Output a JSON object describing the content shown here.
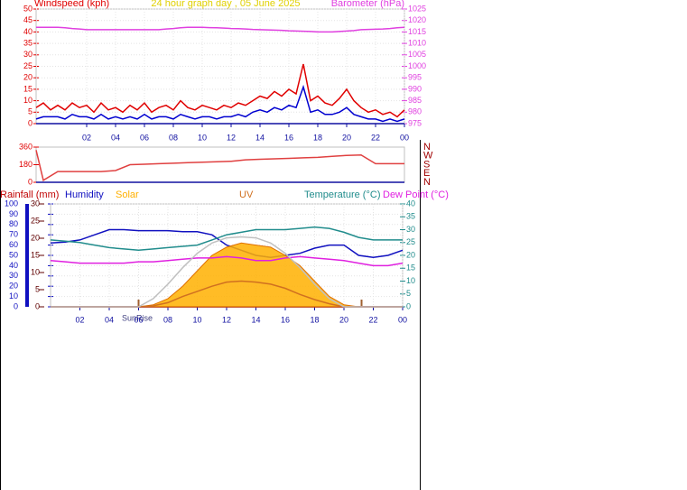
{
  "chart_data": [
    {
      "type": "line",
      "title": "24 hour graph day , 05 June 2025",
      "y_label": "Windspeed (kph)",
      "y2_label": "Barometer (hPa)",
      "x": [
        -1.5,
        -1,
        -0.5,
        0,
        0.5,
        1,
        1.5,
        2,
        2.5,
        3,
        3.5,
        4,
        4.5,
        5,
        5.5,
        6,
        6.5,
        7,
        7.5,
        8,
        8.5,
        9,
        9.5,
        10,
        10.5,
        11,
        11.5,
        12,
        12.5,
        13,
        13.5,
        14,
        14.5,
        15,
        15.5,
        16,
        16.5,
        17,
        17.5,
        18,
        18.5,
        19,
        19.5,
        20,
        20.5,
        21,
        21.5,
        22,
        22.5,
        23,
        23.5,
        24
      ],
      "xlim": [
        -1.5,
        24
      ],
      "xticks": [
        {
          "value": 2,
          "label": "02"
        },
        {
          "value": 4,
          "label": "04"
        },
        {
          "value": 6,
          "label": "06"
        },
        {
          "value": 8,
          "label": "08"
        },
        10,
        12,
        14,
        16,
        18,
        20,
        22,
        {
          "value": 24,
          "label": "00"
        }
      ],
      "ylim": [
        0,
        50
      ],
      "yticks": [
        0,
        5,
        10,
        15,
        20,
        25,
        30,
        35,
        40,
        45,
        50
      ],
      "y2lim": [
        975,
        1025
      ],
      "y2ticks": [
        975,
        980,
        985,
        990,
        995,
        1000,
        1005,
        1010,
        1015,
        1020,
        1025
      ],
      "grid": true,
      "series": [
        {
          "color": "#e00000",
          "values": [
            7,
            9,
            6,
            8,
            6,
            9,
            7,
            8,
            5,
            9,
            6,
            7,
            5,
            8,
            6,
            9,
            5,
            7,
            8,
            6,
            10,
            7,
            6,
            8,
            7,
            6,
            8,
            7,
            9,
            8,
            10,
            12,
            11,
            14,
            12,
            15,
            13,
            26,
            10,
            12,
            9,
            8,
            11,
            15,
            10,
            7,
            5,
            6,
            4,
            5,
            3,
            6
          ]
        },
        {
          "color": "#0000d0",
          "values": [
            2,
            3,
            3,
            3,
            2,
            4,
            3,
            3,
            2,
            4,
            2,
            3,
            2,
            3,
            2,
            4,
            2,
            3,
            3,
            2,
            4,
            3,
            2,
            3,
            3,
            2,
            3,
            3,
            4,
            3,
            5,
            6,
            5,
            7,
            6,
            8,
            7,
            16,
            5,
            6,
            4,
            4,
            5,
            7,
            4,
            3,
            2,
            2,
            1,
            2,
            1,
            2
          ]
        },
        {
          "color": "#e040e0",
          "axis": "y2",
          "values": [
            1017,
            1017,
            1017,
            1017,
            1016.8,
            1016.5,
            1016.3,
            1016,
            1016,
            1016,
            1016,
            1016,
            1016,
            1016,
            1016,
            1016,
            1016,
            1016,
            1016.3,
            1016.5,
            1016.8,
            1017,
            1017,
            1017,
            1016.9,
            1016.8,
            1016.7,
            1016.5,
            1016.4,
            1016.3,
            1016.1,
            1016,
            1015.9,
            1015.8,
            1015.7,
            1015.5,
            1015.4,
            1015.3,
            1015.2,
            1015,
            1015,
            1015,
            1015.2,
            1015.4,
            1015.6,
            1016,
            1016.1,
            1016.2,
            1016.3,
            1016.5,
            1016.8,
            1017
          ]
        }
      ]
    },
    {
      "type": "line",
      "compass": [
        "N",
        "W",
        "S",
        "E",
        "N"
      ],
      "x": [
        -1.5,
        -1,
        0,
        1,
        2,
        3,
        4,
        5,
        6,
        7,
        8,
        9,
        10,
        11,
        12,
        13,
        14,
        15,
        16,
        17,
        18,
        19,
        20,
        21,
        22,
        23,
        24
      ],
      "xlim": [
        -1.5,
        24
      ],
      "ylim": [
        0,
        360
      ],
      "yticks": [
        0,
        180,
        360
      ],
      "series": [
        {
          "color": "#e04040",
          "values": [
            330,
            20,
            110,
            110,
            110,
            110,
            120,
            180,
            185,
            190,
            195,
            200,
            205,
            210,
            215,
            230,
            235,
            240,
            245,
            250,
            255,
            265,
            275,
            280,
            190,
            190,
            190
          ]
        }
      ]
    },
    {
      "type": "line",
      "sunrise_label": "SunRise",
      "sunrise": 6.0,
      "sunset": 21.2,
      "x": [
        0,
        1,
        2,
        3,
        4,
        5,
        6,
        7,
        8,
        9,
        10,
        11,
        12,
        13,
        14,
        15,
        16,
        17,
        18,
        19,
        20,
        21,
        22,
        23,
        24
      ],
      "xlim": [
        0,
        24
      ],
      "xticks": [
        {
          "value": 2,
          "label": "02"
        },
        {
          "value": 4,
          "label": "04"
        },
        {
          "value": 6,
          "label": "06"
        },
        {
          "value": 8,
          "label": "08"
        },
        10,
        12,
        14,
        16,
        18,
        20,
        22,
        {
          "value": 24,
          "label": "00"
        }
      ],
      "ylim": [
        0,
        100
      ],
      "yticks": [
        0,
        10,
        20,
        30,
        40,
        50,
        60,
        70,
        80,
        90,
        100
      ],
      "y2lim": [
        0,
        40
      ],
      "y2ticks": [
        0,
        5,
        10,
        15,
        20,
        25,
        30,
        35,
        40
      ],
      "y3lim": [
        0,
        30
      ],
      "y3ticks": [
        0,
        5,
        10,
        15,
        20,
        25,
        30
      ],
      "grid": true,
      "series": [
        {
          "name": "Rainfall (mm)",
          "color": "#c00000",
          "axis": "y3",
          "values": [
            0,
            0,
            0,
            0,
            0,
            0,
            0,
            0,
            0,
            0,
            0,
            0,
            0,
            0,
            0,
            0,
            0,
            0,
            0,
            0,
            0,
            0,
            0,
            0,
            0
          ]
        },
        {
          "name": "Humidity",
          "color": "#1010c0",
          "values": [
            62,
            63,
            65,
            70,
            75,
            75,
            74,
            74,
            74,
            73,
            73,
            70,
            60,
            55,
            50,
            48,
            50,
            52,
            57,
            60,
            60,
            50,
            48,
            50,
            55
          ]
        },
        {
          "name": "Solar",
          "color": "#ffb000",
          "fill": true,
          "values": [
            0,
            0,
            0,
            0,
            0,
            0,
            0,
            2,
            8,
            20,
            35,
            50,
            58,
            62,
            60,
            58,
            50,
            40,
            25,
            10,
            2,
            0,
            0,
            0,
            0
          ]
        },
        {
          "name": "UV",
          "color": "#d07020",
          "values": [
            0,
            0,
            0,
            0,
            0,
            0,
            0,
            1,
            4,
            10,
            15,
            20,
            24,
            25,
            24,
            22,
            18,
            12,
            7,
            3,
            0,
            0,
            0,
            0,
            0
          ]
        },
        {
          "name": "Temperature (°C)",
          "color": "#208c8c",
          "axis": "y2",
          "values": [
            26,
            25.5,
            25,
            24,
            23,
            22.5,
            22,
            22.5,
            23,
            23.5,
            24,
            26,
            28,
            29,
            30,
            30,
            30,
            30.5,
            31,
            30.5,
            29,
            27,
            26,
            26,
            26
          ]
        },
        {
          "name": "Dew Point (°C)",
          "color": "#e020e0",
          "axis": "y2",
          "values": [
            18,
            17.5,
            17,
            17,
            17,
            17,
            17.5,
            17.5,
            18,
            18.5,
            19,
            19,
            19.5,
            19,
            18,
            18,
            19,
            19.5,
            19,
            18.5,
            18,
            17,
            16,
            16,
            17
          ]
        },
        {
          "color": "#c0c0c0",
          "values": [
            0,
            0,
            0,
            0,
            0,
            0,
            0,
            8,
            22,
            38,
            52,
            62,
            67,
            68,
            67,
            62,
            52,
            38,
            22,
            8,
            0,
            0,
            0,
            0,
            0
          ]
        }
      ]
    }
  ]
}
